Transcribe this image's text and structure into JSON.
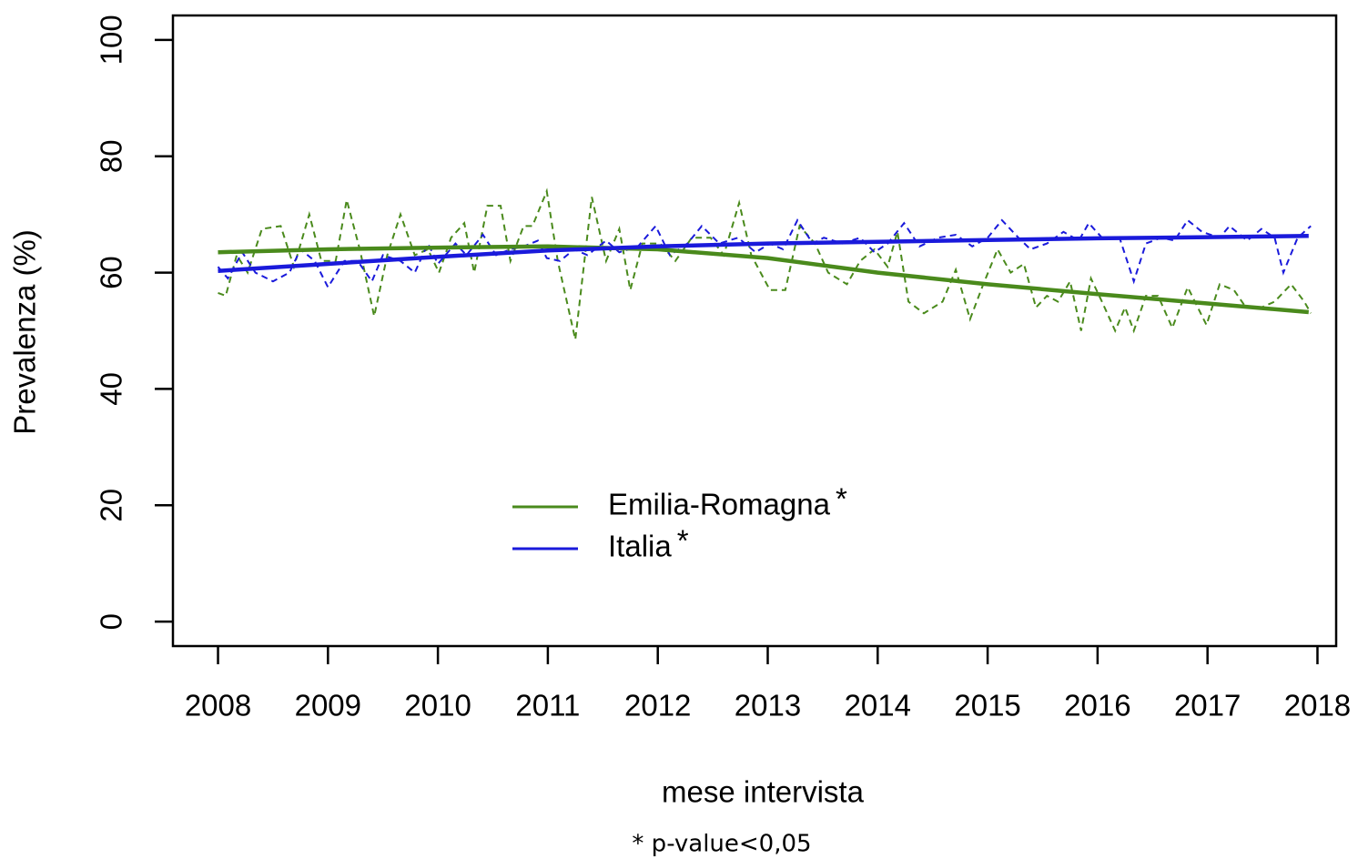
{
  "chart_data": {
    "type": "line",
    "y_label": "Prevalenza (%)",
    "x_label": "mese intervista",
    "note": "* p-value<0,05",
    "legend_mark": "*",
    "xlim": [
      2007.59,
      2018.17
    ],
    "ylim": [
      -4.2,
      104.2
    ],
    "xticks": [
      2008,
      2009,
      2010,
      2011,
      2012,
      2013,
      2014,
      2015,
      2016,
      2017,
      2018
    ],
    "yticks": [
      0,
      20,
      40,
      60,
      80,
      100
    ],
    "trend_x": [
      2008,
      2009,
      2010,
      2011,
      2012,
      2013,
      2014,
      2015,
      2016,
      2017,
      2017.92
    ],
    "series": [
      {
        "name": "Emilia-Romagna",
        "color": "#4a8a1c",
        "x": [
          2008.0,
          2008.07,
          2008.17,
          2008.27,
          2008.4,
          2008.57,
          2008.69,
          2008.83,
          2008.94,
          2009.07,
          2009.17,
          2009.29,
          2009.42,
          2009.54,
          2009.66,
          2009.79,
          2009.91,
          2010.01,
          2010.12,
          2010.24,
          2010.33,
          2010.45,
          2010.57,
          2010.66,
          2010.78,
          2010.86,
          2010.99,
          2011.09,
          2011.25,
          2011.4,
          2011.53,
          2011.65,
          2011.75,
          2011.86,
          2012.02,
          2012.16,
          2012.31,
          2012.48,
          2012.6,
          2012.74,
          2012.85,
          2013.02,
          2013.16,
          2013.29,
          2013.43,
          2013.55,
          2013.72,
          2013.84,
          2013.97,
          2014.09,
          2014.18,
          2014.28,
          2014.42,
          2014.59,
          2014.71,
          2014.84,
          2014.96,
          2015.09,
          2015.21,
          2015.33,
          2015.44,
          2015.54,
          2015.64,
          2015.75,
          2015.85,
          2015.94,
          2016.04,
          2016.16,
          2016.25,
          2016.33,
          2016.44,
          2016.55,
          2016.68,
          2016.82,
          2016.99,
          2017.11,
          2017.24,
          2017.35,
          2017.49,
          2017.61,
          2017.76,
          2017.88,
          2017.94
        ],
        "values": [
          56.5,
          56,
          63,
          60,
          67.5,
          68,
          61,
          70,
          62,
          62,
          72.5,
          64,
          52.5,
          63,
          70,
          63,
          64,
          60,
          66,
          68.5,
          60,
          71.5,
          71.5,
          62,
          68,
          68,
          74,
          62,
          48.5,
          73,
          62,
          67.5,
          57,
          65,
          65,
          62,
          66,
          66,
          63,
          72,
          63,
          57,
          57,
          68,
          65,
          60,
          58,
          62,
          64,
          61,
          67,
          55,
          53,
          55,
          60.5,
          52,
          58,
          64,
          60,
          61.5,
          54,
          56,
          55,
          58.5,
          50,
          59,
          55,
          50,
          54,
          50,
          56,
          56,
          50.5,
          57.5,
          51,
          58,
          57,
          54,
          54,
          55,
          58,
          55,
          53
        ],
        "trend": [
          63.5,
          64,
          64.3,
          64.5,
          64,
          62.5,
          60,
          58,
          56.3,
          54.7,
          53.2
        ]
      },
      {
        "name": "Italia",
        "color": "#1a1adb",
        "x": [
          2008.0,
          2008.09,
          2008.22,
          2008.34,
          2008.5,
          2008.65,
          2008.75,
          2008.88,
          2009.0,
          2009.15,
          2009.27,
          2009.4,
          2009.5,
          2009.66,
          2009.79,
          2009.91,
          2010.0,
          2010.16,
          2010.26,
          2010.41,
          2010.53,
          2010.66,
          2010.78,
          2010.91,
          2010.99,
          2011.11,
          2011.24,
          2011.36,
          2011.53,
          2011.65,
          2011.82,
          2011.98,
          2012.11,
          2012.27,
          2012.4,
          2012.56,
          2012.73,
          2012.89,
          2013.02,
          2013.14,
          2013.27,
          2013.41,
          2013.51,
          2013.68,
          2013.84,
          2013.97,
          2014.09,
          2014.24,
          2014.38,
          2014.55,
          2014.71,
          2014.86,
          2015.0,
          2015.13,
          2015.28,
          2015.39,
          2015.54,
          2015.69,
          2015.83,
          2015.92,
          2016.04,
          2016.2,
          2016.33,
          2016.44,
          2016.58,
          2016.7,
          2016.82,
          2016.95,
          2017.11,
          2017.2,
          2017.36,
          2017.49,
          2017.61,
          2017.69,
          2017.82,
          2017.94
        ],
        "values": [
          61,
          59,
          63.5,
          60,
          58.5,
          60,
          64,
          62,
          57.5,
          62,
          62,
          58.5,
          63,
          62,
          60,
          65,
          61.5,
          65,
          63,
          66.5,
          63,
          64,
          64.5,
          65.5,
          62.5,
          62,
          64,
          63,
          65.5,
          63.5,
          64.5,
          68,
          63,
          65,
          68,
          65,
          66,
          63.5,
          65,
          64,
          69,
          65,
          66,
          65,
          66,
          63.5,
          65,
          68.5,
          64.5,
          66,
          66.5,
          64.5,
          66,
          69,
          66,
          64,
          65,
          67,
          65.5,
          68.5,
          66,
          66,
          58.5,
          65,
          66,
          65.5,
          69,
          67,
          66,
          68,
          65.5,
          67.5,
          66,
          60,
          66,
          68
        ],
        "trend": [
          60.3,
          61.5,
          62.7,
          63.8,
          64.5,
          65,
          65.3,
          65.6,
          65.9,
          66.1,
          66.3
        ]
      }
    ]
  }
}
